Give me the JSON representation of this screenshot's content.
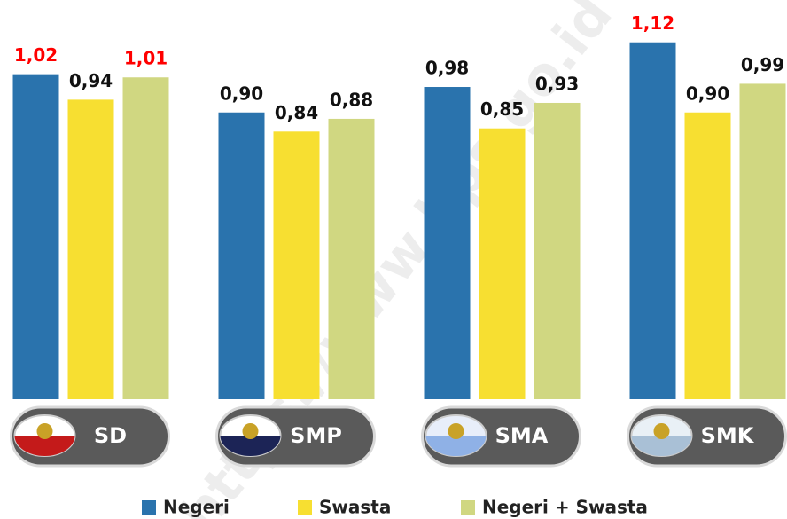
{
  "chart_data": {
    "type": "bar",
    "categories": [
      "SD",
      "SMP",
      "SMA",
      "SMK"
    ],
    "series": [
      {
        "name": "Negeri",
        "color": "#2a73ad",
        "values": [
          1.02,
          0.9,
          0.98,
          1.12
        ],
        "value_labels": [
          "1,02",
          "0,90",
          "0,98",
          "1,12"
        ],
        "value_label_colors": [
          "#ff0000",
          "#111111",
          "#111111",
          "#ff0000"
        ]
      },
      {
        "name": "Swasta",
        "color": "#f7df31",
        "values": [
          0.94,
          0.84,
          0.85,
          0.9
        ],
        "value_labels": [
          "0,94",
          "0,84",
          "0,85",
          "0,90"
        ],
        "value_label_colors": [
          "#111111",
          "#111111",
          "#111111",
          "#111111"
        ]
      },
      {
        "name": "Negeri + Swasta",
        "color": "#d0d781",
        "values": [
          1.01,
          0.88,
          0.93,
          0.99
        ],
        "value_labels": [
          "1,01",
          "0,88",
          "0,93",
          "0,99"
        ],
        "value_label_colors": [
          "#ff0000",
          "#111111",
          "#111111",
          "#111111"
        ]
      }
    ],
    "ylim": [
      0,
      1.2
    ],
    "grid": false,
    "legend": "bottom",
    "watermark": "https://www.bps.go.id"
  }
}
